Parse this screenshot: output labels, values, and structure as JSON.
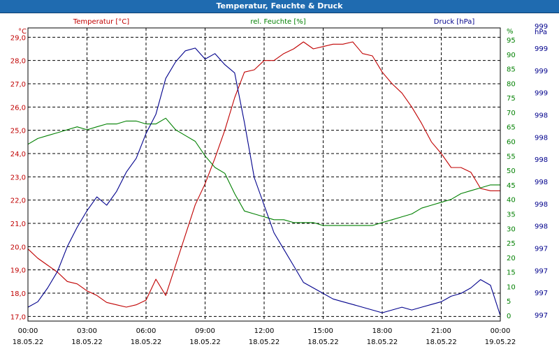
{
  "chart_data": {
    "type": "line",
    "title": "Temperatur, Feuchte & Druck",
    "x": [
      "00:00",
      "00:30",
      "01:00",
      "01:30",
      "02:00",
      "02:30",
      "03:00",
      "03:30",
      "04:00",
      "04:30",
      "05:00",
      "05:30",
      "06:00",
      "06:30",
      "07:00",
      "07:30",
      "08:00",
      "08:30",
      "09:00",
      "09:30",
      "10:00",
      "10:30",
      "11:00",
      "11:30",
      "12:00",
      "12:30",
      "13:00",
      "13:30",
      "14:00",
      "14:30",
      "15:00",
      "15:30",
      "16:00",
      "16:30",
      "17:00",
      "17:30",
      "18:00",
      "18:30",
      "19:00",
      "19:30",
      "20:00",
      "20:30",
      "21:00",
      "21:30",
      "22:00",
      "22:30",
      "23:00",
      "23:30",
      "24:00"
    ],
    "x_tick_labels": [
      {
        "time": "00:00",
        "date": "18.05.22"
      },
      {
        "time": "03:00",
        "date": "18.05.22"
      },
      {
        "time": "06:00",
        "date": "18.05.22"
      },
      {
        "time": "09:00",
        "date": "18.05.22"
      },
      {
        "time": "12:00",
        "date": "18.05.22"
      },
      {
        "time": "15:00",
        "date": "18.05.22"
      },
      {
        "time": "18:00",
        "date": "18.05.22"
      },
      {
        "time": "21:00",
        "date": "18.05.22"
      },
      {
        "time": "00:00",
        "date": "19.05.22"
      }
    ],
    "axes": {
      "left": {
        "unit": "°C",
        "min": 16.8,
        "max": 29.4,
        "ticks": [
          "17,0",
          "18,0",
          "19,0",
          "20,0",
          "21,0",
          "22,0",
          "23,0",
          "24,0",
          "25,0",
          "26,0",
          "27,0",
          "28,0",
          "29,0"
        ]
      },
      "right1": {
        "unit": "%",
        "min": 0,
        "max": 95,
        "ticks": [
          "0",
          "5",
          "10",
          "15",
          "20",
          "25",
          "30",
          "35",
          "40",
          "45",
          "50",
          "55",
          "60",
          "65",
          "70",
          "75",
          "80",
          "85",
          "90",
          "95",
          "%"
        ]
      },
      "right2": {
        "unit": "hPa",
        "ticks": [
          "997",
          "997",
          "997",
          "997",
          "998",
          "998",
          "998",
          "998",
          "998",
          "998",
          "999",
          "999",
          "999",
          "999",
          "hPa"
        ]
      }
    },
    "series": [
      {
        "name": "Temperatur [°C]",
        "axis": "left",
        "color": "#c00000",
        "values": [
          19.9,
          19.5,
          19.2,
          18.9,
          18.5,
          18.4,
          18.1,
          17.9,
          17.6,
          17.5,
          17.4,
          17.5,
          17.7,
          18.6,
          17.9,
          19.2,
          20.5,
          21.8,
          22.7,
          23.8,
          25.0,
          26.4,
          27.5,
          27.6,
          28.0,
          28.0,
          28.3,
          28.5,
          28.8,
          28.5,
          28.6,
          28.7,
          28.7,
          28.8,
          28.3,
          28.2,
          27.5,
          27.0,
          26.6,
          26.0,
          25.3,
          24.5,
          24.0,
          23.4,
          23.4,
          23.2,
          22.5,
          22.4,
          22.4
        ]
      },
      {
        "name": "rel. Feuchte [%]",
        "axis": "right1",
        "color": "#008000",
        "values": [
          59,
          61,
          62,
          63,
          64,
          65,
          64,
          65,
          66,
          66,
          67,
          67,
          66,
          66,
          68,
          64,
          62,
          60,
          55,
          51,
          49,
          42,
          36,
          35,
          34,
          33,
          33,
          32,
          32,
          32,
          31,
          31,
          31,
          31,
          31,
          31,
          32,
          33,
          34,
          35,
          37,
          38,
          39,
          40,
          42,
          43,
          44,
          45,
          45
        ]
      },
      {
        "name": "Druck [hPa]",
        "axis": "right2",
        "color": "#00008c",
        "relative_level_0_to_1": [
          0.03,
          0.05,
          0.1,
          0.16,
          0.25,
          0.32,
          0.38,
          0.43,
          0.4,
          0.45,
          0.52,
          0.57,
          0.66,
          0.73,
          0.86,
          0.92,
          0.96,
          0.97,
          0.93,
          0.95,
          0.91,
          0.88,
          0.7,
          0.5,
          0.4,
          0.3,
          0.24,
          0.18,
          0.12,
          0.1,
          0.08,
          0.06,
          0.05,
          0.04,
          0.03,
          0.02,
          0.01,
          0.02,
          0.03,
          0.02,
          0.03,
          0.04,
          0.05,
          0.07,
          0.08,
          0.1,
          0.13,
          0.11,
          0.0
        ]
      }
    ],
    "grid": true,
    "legend": "top"
  }
}
